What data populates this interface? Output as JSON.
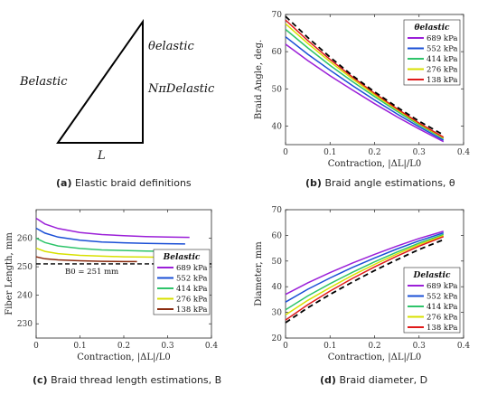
{
  "diagram": {
    "labels": {
      "theta": "θelastic",
      "b": "Belastic",
      "n": "NπDelastic",
      "l": "L"
    }
  },
  "captions": {
    "a": {
      "letter": "(a)",
      "text": "Elastic braid definitions"
    },
    "b": {
      "letter": "(b)",
      "text": "Braid angle estimations, θ"
    },
    "c": {
      "letter": "(c)",
      "text": "Braid thread length estimations, B"
    },
    "d": {
      "letter": "(d)",
      "text": "Braid diameter, D"
    }
  },
  "chart_data": [
    {
      "id": "b",
      "type": "line",
      "xlabel": "Contraction, |ΔL|/L0",
      "ylabel": "Braid Angle, deg.",
      "xlim": [
        0,
        0.4
      ],
      "ylim": [
        35,
        70
      ],
      "xticks": [
        0,
        0.1,
        0.2,
        0.3,
        0.4
      ],
      "yticks": [
        40,
        50,
        60,
        70
      ],
      "legend_title": "θelastic",
      "legend_position": "top-right",
      "series": [
        {
          "name": "689 kPa",
          "color": "#9b1fd8",
          "x": [
            0,
            0.05,
            0.1,
            0.15,
            0.2,
            0.25,
            0.3,
            0.355
          ],
          "y": [
            62,
            57.6,
            53.5,
            49.7,
            46.0,
            42.5,
            39.2,
            35.8
          ]
        },
        {
          "name": "552 kPa",
          "color": "#1a4fd6",
          "x": [
            0,
            0.05,
            0.1,
            0.15,
            0.2,
            0.25,
            0.3,
            0.355
          ],
          "y": [
            64,
            59.3,
            55.0,
            50.9,
            47.0,
            43.3,
            39.8,
            36.2
          ]
        },
        {
          "name": "414 kPa",
          "color": "#2ec46a",
          "x": [
            0,
            0.05,
            0.1,
            0.15,
            0.2,
            0.25,
            0.3,
            0.355
          ],
          "y": [
            66,
            61.0,
            56.3,
            52.0,
            47.9,
            44.0,
            40.3,
            36.6
          ]
        },
        {
          "name": "276 kPa",
          "color": "#d8e000",
          "x": [
            0,
            0.05,
            0.1,
            0.15,
            0.2,
            0.25,
            0.3,
            0.355
          ],
          "y": [
            67.5,
            62.2,
            57.3,
            52.7,
            48.4,
            44.4,
            40.6,
            36.8
          ]
        },
        {
          "name": "138 kPa",
          "color": "#e01a1a",
          "x": [
            0,
            0.05,
            0.1,
            0.15,
            0.2,
            0.25,
            0.3,
            0.355
          ],
          "y": [
            68.5,
            63.0,
            57.9,
            53.2,
            48.8,
            44.7,
            40.8,
            37.0
          ]
        },
        {
          "name": "",
          "color": "#000000",
          "dashed": true,
          "x": [
            0,
            0.05,
            0.1,
            0.15,
            0.2,
            0.25,
            0.3,
            0.355
          ],
          "y": [
            69.5,
            63.8,
            58.5,
            53.6,
            49.2,
            45.1,
            41.3,
            37.6
          ]
        }
      ]
    },
    {
      "id": "c",
      "type": "line",
      "xlabel": "Contraction, |ΔL|/L0",
      "ylabel": "Fiber Length, mm",
      "xlim": [
        0,
        0.4
      ],
      "ylim": [
        225,
        270
      ],
      "xticks": [
        0,
        0.1,
        0.2,
        0.3,
        0.4
      ],
      "yticks": [
        230,
        240,
        250,
        260
      ],
      "legend_title": "Belastic",
      "legend_position": "center-right",
      "annotation": "B0 = 251 mm",
      "reference_value": 251,
      "series": [
        {
          "name": "689 kPa",
          "color": "#9b1fd8",
          "x": [
            0,
            0.02,
            0.05,
            0.1,
            0.15,
            0.2,
            0.25,
            0.3,
            0.35
          ],
          "y": [
            267,
            265.0,
            263.4,
            262.0,
            261.3,
            260.9,
            260.6,
            260.4,
            260.3
          ]
        },
        {
          "name": "552 kPa",
          "color": "#1a4fd6",
          "x": [
            0,
            0.02,
            0.05,
            0.1,
            0.15,
            0.2,
            0.25,
            0.3,
            0.34
          ],
          "y": [
            263.5,
            261.8,
            260.4,
            259.3,
            258.7,
            258.4,
            258.2,
            258.1,
            258.0
          ]
        },
        {
          "name": "414 kPa",
          "color": "#2ec46a",
          "x": [
            0,
            0.02,
            0.05,
            0.1,
            0.15,
            0.2,
            0.25,
            0.3,
            0.33
          ],
          "y": [
            260,
            258.5,
            257.3,
            256.4,
            255.9,
            255.7,
            255.5,
            255.4,
            255.4
          ]
        },
        {
          "name": "276 kPa",
          "color": "#d8e000",
          "x": [
            0,
            0.02,
            0.05,
            0.1,
            0.15,
            0.2,
            0.25,
            0.3
          ],
          "y": [
            256.5,
            255.4,
            254.6,
            254.0,
            253.7,
            253.5,
            253.4,
            253.3
          ]
        },
        {
          "name": "138 kPa",
          "color": "#8b2c10",
          "x": [
            0,
            0.02,
            0.05,
            0.1,
            0.15,
            0.2,
            0.23
          ],
          "y": [
            253.5,
            252.8,
            252.4,
            252.1,
            251.9,
            251.8,
            251.8
          ]
        }
      ]
    },
    {
      "id": "d",
      "type": "line",
      "xlabel": "Contraction, |ΔL|/L0",
      "ylabel": "Diameter, mm",
      "xlim": [
        0,
        0.4
      ],
      "ylim": [
        20,
        70
      ],
      "xticks": [
        0,
        0.1,
        0.2,
        0.3,
        0.4
      ],
      "yticks": [
        20,
        30,
        40,
        50,
        60,
        70
      ],
      "legend_title": "Delastic",
      "legend_position": "bottom-right",
      "series": [
        {
          "name": "689 kPa",
          "color": "#9b1fd8",
          "x": [
            0,
            0.05,
            0.1,
            0.15,
            0.2,
            0.25,
            0.3,
            0.355
          ],
          "y": [
            37,
            41.5,
            45.5,
            49.2,
            52.6,
            55.8,
            58.8,
            61.6
          ]
        },
        {
          "name": "552 kPa",
          "color": "#1a4fd6",
          "x": [
            0,
            0.05,
            0.1,
            0.15,
            0.2,
            0.25,
            0.3,
            0.355
          ],
          "y": [
            34,
            39.0,
            43.4,
            47.5,
            51.2,
            54.7,
            57.9,
            61.0
          ]
        },
        {
          "name": "414 kPa",
          "color": "#2ec46a",
          "x": [
            0,
            0.05,
            0.1,
            0.15,
            0.2,
            0.25,
            0.3,
            0.355
          ],
          "y": [
            31,
            36.4,
            41.2,
            45.6,
            49.7,
            53.5,
            57.0,
            60.4
          ]
        },
        {
          "name": "276 kPa",
          "color": "#d8e000",
          "x": [
            0,
            0.05,
            0.1,
            0.15,
            0.2,
            0.25,
            0.3,
            0.355
          ],
          "y": [
            29,
            34.7,
            39.7,
            44.4,
            48.7,
            52.7,
            56.4,
            59.9
          ]
        },
        {
          "name": "138 kPa",
          "color": "#e01a1a",
          "x": [
            0,
            0.05,
            0.1,
            0.15,
            0.2,
            0.25,
            0.3,
            0.355
          ],
          "y": [
            27,
            33.0,
            38.3,
            43.2,
            47.7,
            51.9,
            55.8,
            59.5
          ]
        },
        {
          "name": "",
          "color": "#000000",
          "dashed": true,
          "x": [
            0,
            0.05,
            0.1,
            0.15,
            0.2,
            0.25,
            0.3,
            0.355
          ],
          "y": [
            26,
            31.8,
            37.0,
            41.8,
            46.3,
            50.5,
            54.5,
            58.3
          ]
        }
      ]
    }
  ]
}
